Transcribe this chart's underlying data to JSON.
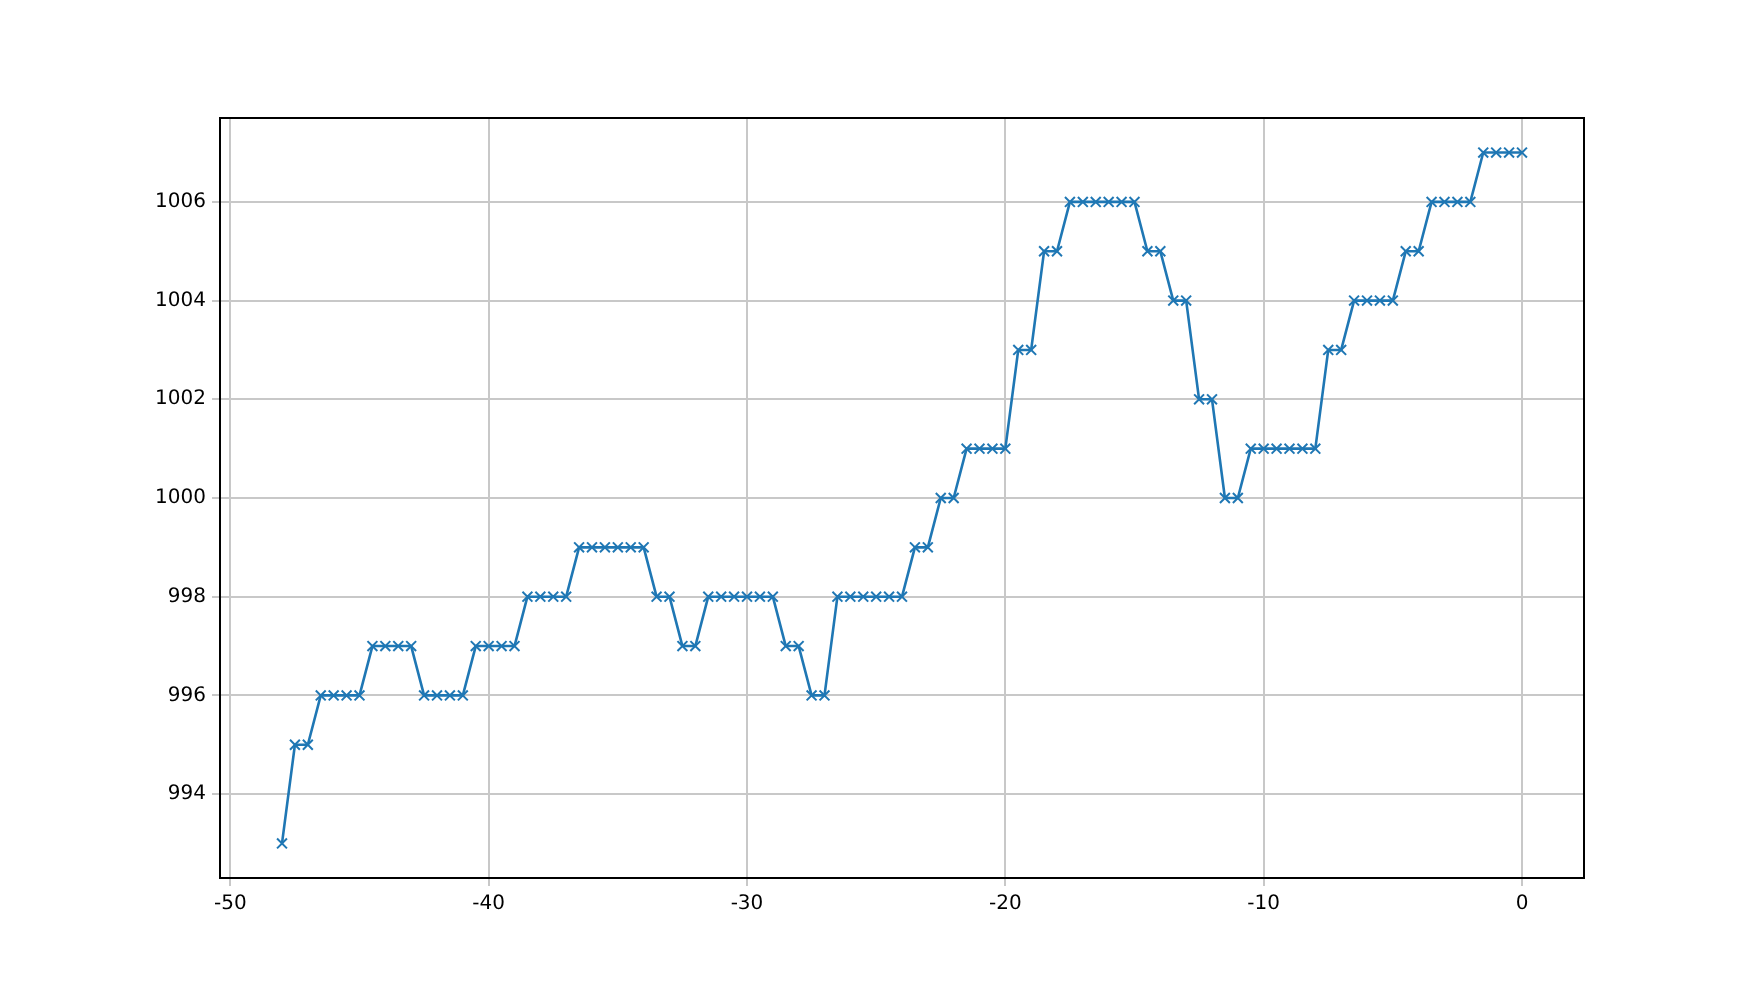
{
  "chart_data": {
    "type": "line",
    "x": [
      -48,
      -47.5,
      -47,
      -46.5,
      -46,
      -45.5,
      -45,
      -44.5,
      -44,
      -43.5,
      -43,
      -42.5,
      -42,
      -41.5,
      -41,
      -40.5,
      -40,
      -39.5,
      -39,
      -38.5,
      -38,
      -37.5,
      -37,
      -36.5,
      -36,
      -35.5,
      -35,
      -34.5,
      -34,
      -33.5,
      -33,
      -32.5,
      -32,
      -31.5,
      -31,
      -30.5,
      -30,
      -29.5,
      -29,
      -28.5,
      -28,
      -27.5,
      -27,
      -26.5,
      -26,
      -25.5,
      -25,
      -24.5,
      -24,
      -23.5,
      -23,
      -22.5,
      -22,
      -21.5,
      -21,
      -20.5,
      -20,
      -19.5,
      -19,
      -18.5,
      -18,
      -17.5,
      -17,
      -16.5,
      -16,
      -15.5,
      -15,
      -14.5,
      -14,
      -13.5,
      -13,
      -12.5,
      -12,
      -11.5,
      -11,
      -10.5,
      -10,
      -9.5,
      -9,
      -8.5,
      -8,
      -7.5,
      -7,
      -6.5,
      -6,
      -5.5,
      -5,
      -4.5,
      -4,
      -3.5,
      -3,
      -2.5,
      -2,
      -1.5,
      -1,
      -0.5,
      0
    ],
    "series": [
      {
        "color": "#1f77b4",
        "values": [
          993,
          995,
          995,
          996,
          996,
          996,
          996,
          997,
          997,
          997,
          997,
          996,
          996,
          996,
          996,
          997,
          997,
          997,
          997,
          998,
          998,
          998,
          998,
          999,
          999,
          999,
          999,
          999,
          999,
          998,
          998,
          997,
          997,
          998,
          998,
          998,
          998,
          998,
          998,
          997,
          997,
          996,
          996,
          998,
          998,
          998,
          998,
          998,
          998,
          999,
          999,
          1000,
          1000,
          1001,
          1001,
          1001,
          1001,
          1003,
          1003,
          1005,
          1005,
          1006,
          1006,
          1006,
          1006,
          1006,
          1006,
          1005,
          1005,
          1004,
          1004,
          1002,
          1002,
          1000,
          1000,
          1001,
          1001,
          1001,
          1001,
          1001,
          1001,
          1003,
          1003,
          1004,
          1004,
          1004,
          1004,
          1005,
          1005,
          1006,
          1006,
          1006,
          1006,
          1007,
          1007,
          1007,
          1007
        ]
      }
    ],
    "xlim": [
      -50.4,
      2.4
    ],
    "xticks": [
      -50,
      -40,
      -30,
      -20,
      -10,
      0
    ],
    "ylim": [
      992.3,
      1007.7
    ],
    "yticks": [
      994,
      996,
      998,
      1000,
      1002,
      1004,
      1006
    ],
    "grid": true,
    "marker": "cross",
    "line_style": "solid"
  }
}
